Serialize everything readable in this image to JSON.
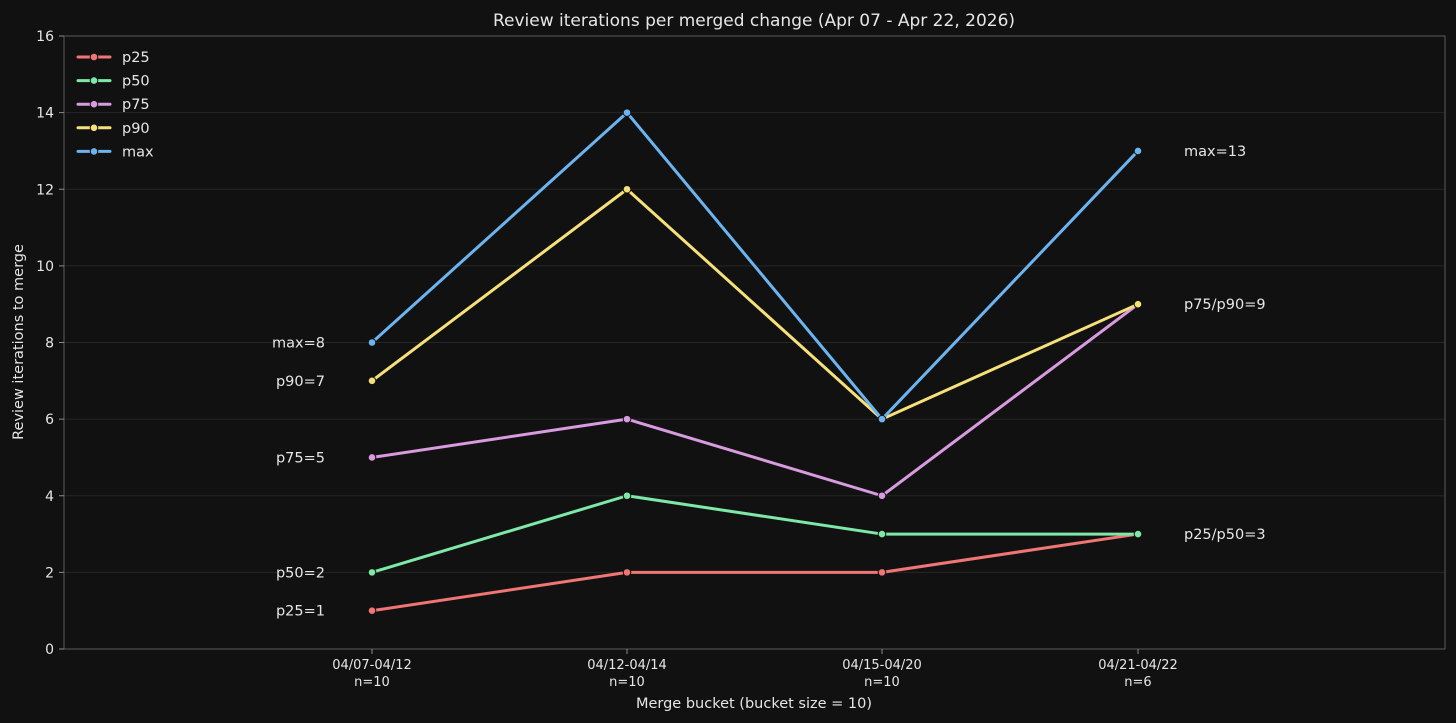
{
  "chart_data": {
    "type": "line",
    "title": "Review iterations per merged change (Apr 07 - Apr 22, 2026)",
    "xlabel": "Merge bucket (bucket size = 10)",
    "ylabel": "Review iterations to merge",
    "ylim": [
      0,
      16
    ],
    "yticks": [
      0,
      2,
      4,
      6,
      8,
      10,
      12,
      14,
      16
    ],
    "grid": true,
    "legend_position": "top-left",
    "categories": [
      {
        "label": "04/07-04/12",
        "n": "n=10"
      },
      {
        "label": "04/12-04/14",
        "n": "n=10"
      },
      {
        "label": "04/15-04/20",
        "n": "n=10"
      },
      {
        "label": "04/21-04/22",
        "n": "n=6"
      }
    ],
    "series": [
      {
        "name": "p25",
        "color": "#f07575",
        "values": [
          1,
          2,
          2,
          3
        ]
      },
      {
        "name": "p50",
        "color": "#7ee8a8",
        "values": [
          2,
          4,
          3,
          3
        ]
      },
      {
        "name": "p75",
        "color": "#d99be0",
        "values": [
          5,
          6,
          4,
          9
        ]
      },
      {
        "name": "p90",
        "color": "#f5e07a",
        "values": [
          7,
          12,
          6,
          9
        ]
      },
      {
        "name": "max",
        "color": "#6cb4f0",
        "values": [
          8,
          14,
          6,
          13
        ]
      }
    ],
    "annotations_left": [
      {
        "text": "max=8",
        "y": 8
      },
      {
        "text": "p90=7",
        "y": 7
      },
      {
        "text": "p75=5",
        "y": 5
      },
      {
        "text": "p50=2",
        "y": 2
      },
      {
        "text": "p25=1",
        "y": 1
      }
    ],
    "annotations_right": [
      {
        "text": "max=13",
        "y": 13
      },
      {
        "text": "p75/p90=9",
        "y": 9
      },
      {
        "text": "p25/p50=3",
        "y": 3
      }
    ]
  }
}
